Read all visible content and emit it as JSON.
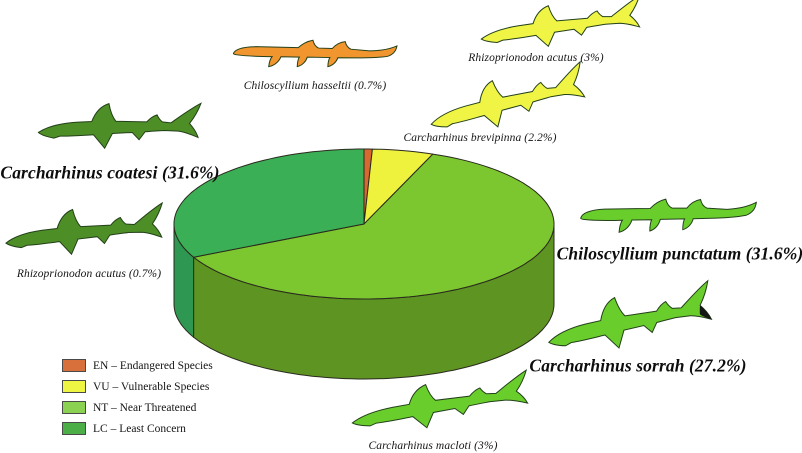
{
  "figure": {
    "background": "#FFFFFF",
    "description": "3D pie chart of shark species composition by IUCN conservation status, surrounded by colored shark silhouettes with species labels"
  },
  "chart_data": {
    "type": "pie",
    "style": "3d",
    "title": "",
    "unit": "percent",
    "start_angle": "top",
    "direction": "clockwise",
    "legend_position": "bottom-left",
    "slices": [
      {
        "code": "EN",
        "label": "EN – Endangered Species",
        "value": 0.7,
        "color": "#D5692F",
        "side_color": "#A64F22",
        "legend_color": "#D8703B"
      },
      {
        "code": "VU",
        "label": "VU – Vulnerable Species",
        "value": 5.2,
        "color": "#EEF23D",
        "side_color": "#BCBE2C",
        "legend_color": "#EEF542"
      },
      {
        "code": "NT",
        "label": "NT – Near Threatened",
        "value": 61.8,
        "color": "#7CC72F",
        "side_color": "#5E9421",
        "legend_color": "#8BD152"
      },
      {
        "code": "LC",
        "label": "LC – Least Concern",
        "value": 32.3,
        "color": "#3BAF55",
        "side_color": "#2E9752",
        "legend_color": "#4CAE46"
      }
    ],
    "species": [
      {
        "name": "Chiloscyllium hasseltii",
        "value": 0.7,
        "category": "EN"
      },
      {
        "name": "Rhizoprionodon acutus",
        "value": 3,
        "category": "VU"
      },
      {
        "name": "Carcharhinus brevipinna",
        "value": 2.2,
        "category": "VU"
      },
      {
        "name": "Carcharhinus coatesi",
        "value": 31.6,
        "category": "LC"
      },
      {
        "name": "Rhizoprionodon acutus",
        "value": 0.7,
        "category": "LC"
      },
      {
        "name": "Chiloscyllium punctatum",
        "value": 31.6,
        "category": "NT"
      },
      {
        "name": "Carcharhinus sorrah",
        "value": 27.2,
        "category": "NT"
      },
      {
        "name": "Carcharhinus macloti",
        "value": 3,
        "category": "NT"
      }
    ]
  },
  "callouts": [
    {
      "id": "hasseltii",
      "text": "Chiloscyllium hasseltii (0.7%)",
      "emphasis": false,
      "shark": {
        "type": "bamboo",
        "color": "#F1952E"
      }
    },
    {
      "id": "acutus-3",
      "text": "Rhizoprionodon acutus (3%)",
      "emphasis": false,
      "shark": {
        "type": "requiem",
        "color": "#EFF445"
      }
    },
    {
      "id": "brevipinna",
      "text": "Carcharhinus brevipinna (2.2%)",
      "emphasis": false,
      "shark": {
        "type": "requiem",
        "color": "#EFF445"
      }
    },
    {
      "id": "coatesi",
      "text": "Carcharhinus coatesi (31.6%)",
      "emphasis": true,
      "shark": {
        "type": "requiem",
        "color": "#4E8E26"
      }
    },
    {
      "id": "acutus-07",
      "text": "Rhizoprionodon acutus (0.7%)",
      "emphasis": false,
      "shark": {
        "type": "requiem",
        "color": "#4E8E26"
      }
    },
    {
      "id": "punctatum",
      "text": "Chiloscyllium punctatum (31.6%)",
      "emphasis": true,
      "shark": {
        "type": "bamboo",
        "color": "#69CE2B"
      }
    },
    {
      "id": "sorrah",
      "text": "Carcharhinus sorrah (27.2%)",
      "emphasis": true,
      "shark": {
        "type": "requiem",
        "color": "#69CE2B",
        "tail_tip": "#161616"
      }
    },
    {
      "id": "macloti",
      "text": "Carcharhinus macloti (3%)",
      "emphasis": false,
      "shark": {
        "type": "requiem",
        "color": "#69CE2B"
      }
    }
  ]
}
